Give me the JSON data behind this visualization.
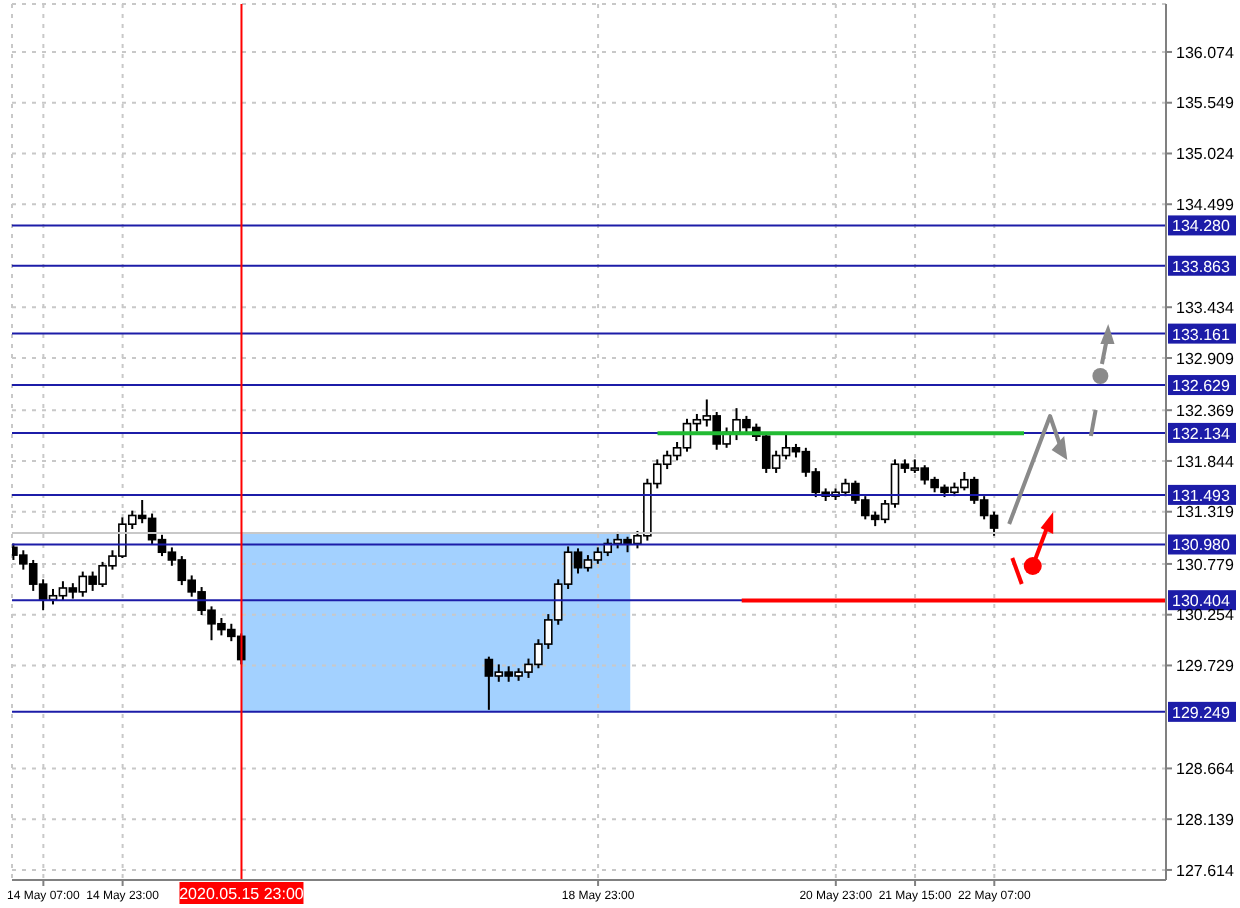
{
  "chart_data": {
    "type": "candlestick",
    "color": "#000000",
    "x": [
      "2020-05-14T01:00",
      "2020-05-14T03:00",
      "2020-05-14T05:00",
      "2020-05-14T07:00",
      "2020-05-14T09:00",
      "2020-05-14T11:00",
      "2020-05-14T13:00",
      "2020-05-14T15:00",
      "2020-05-14T17:00",
      "2020-05-14T19:00",
      "2020-05-14T21:00",
      "2020-05-14T23:00",
      "2020-05-15T01:00",
      "2020-05-15T03:00",
      "2020-05-15T05:00",
      "2020-05-15T07:00",
      "2020-05-15T09:00",
      "2020-05-15T11:00",
      "2020-05-15T13:00",
      "2020-05-15T15:00",
      "2020-05-15T17:00",
      "2020-05-15T19:00",
      "2020-05-15T21:00",
      "2020-05-15T23:00",
      "2020-05-18T01:00",
      "2020-05-18T03:00",
      "2020-05-18T05:00",
      "2020-05-18T07:00",
      "2020-05-18T09:00",
      "2020-05-18T11:00",
      "2020-05-18T13:00",
      "2020-05-18T15:00",
      "2020-05-18T17:00",
      "2020-05-18T19:00",
      "2020-05-18T21:00",
      "2020-05-18T23:00",
      "2020-05-19T01:00",
      "2020-05-19T03:00",
      "2020-05-19T05:00",
      "2020-05-19T07:00",
      "2020-05-19T09:00",
      "2020-05-19T11:00",
      "2020-05-19T13:00",
      "2020-05-19T15:00",
      "2020-05-19T17:00",
      "2020-05-19T19:00",
      "2020-05-19T21:00",
      "2020-05-19T23:00",
      "2020-05-20T01:00",
      "2020-05-20T03:00",
      "2020-05-20T05:00",
      "2020-05-20T07:00",
      "2020-05-20T09:00",
      "2020-05-20T11:00",
      "2020-05-20T13:00",
      "2020-05-20T15:00",
      "2020-05-20T17:00",
      "2020-05-20T19:00",
      "2020-05-20T21:00",
      "2020-05-20T23:00",
      "2020-05-21T01:00",
      "2020-05-21T03:00",
      "2020-05-21T05:00",
      "2020-05-21T07:00",
      "2020-05-21T09:00",
      "2020-05-21T11:00",
      "2020-05-21T13:00",
      "2020-05-21T15:00",
      "2020-05-21T17:00",
      "2020-05-21T19:00",
      "2020-05-21T21:00",
      "2020-05-21T23:00",
      "2020-05-22T01:00",
      "2020-05-22T03:00",
      "2020-05-22T05:00",
      "2020-05-22T07:00"
    ],
    "ohlc": [
      [
        130.95,
        130.99,
        130.82,
        130.87
      ],
      [
        130.87,
        130.92,
        130.72,
        130.78
      ],
      [
        130.78,
        130.82,
        130.5,
        130.57
      ],
      [
        130.57,
        130.62,
        130.3,
        130.41
      ],
      [
        130.41,
        130.52,
        130.36,
        130.45
      ],
      [
        130.45,
        130.6,
        130.4,
        130.53
      ],
      [
        130.53,
        130.58,
        130.42,
        130.49
      ],
      [
        130.49,
        130.7,
        130.44,
        130.65
      ],
      [
        130.65,
        130.7,
        130.5,
        130.57
      ],
      [
        130.57,
        130.8,
        130.54,
        130.76
      ],
      [
        130.76,
        130.92,
        130.72,
        130.86
      ],
      [
        130.86,
        131.26,
        130.84,
        131.19
      ],
      [
        131.19,
        131.33,
        131.14,
        131.28
      ],
      [
        131.28,
        131.44,
        131.2,
        131.25
      ],
      [
        131.25,
        131.3,
        130.98,
        131.03
      ],
      [
        131.03,
        131.08,
        130.86,
        130.9
      ],
      [
        130.9,
        130.95,
        130.76,
        130.82
      ],
      [
        130.82,
        130.86,
        130.56,
        130.61
      ],
      [
        130.61,
        130.66,
        130.44,
        130.49
      ],
      [
        130.49,
        130.54,
        130.25,
        130.3
      ],
      [
        130.3,
        130.34,
        129.99,
        130.16
      ],
      [
        130.16,
        130.22,
        130.04,
        130.1
      ],
      [
        130.1,
        130.16,
        129.98,
        130.03
      ],
      [
        130.03,
        130.06,
        129.74,
        129.79
      ],
      [
        129.79,
        129.82,
        129.27,
        129.62
      ],
      [
        129.62,
        129.74,
        129.56,
        129.66
      ],
      [
        129.66,
        129.72,
        129.56,
        129.62
      ],
      [
        129.62,
        129.7,
        129.57,
        129.66
      ],
      [
        129.66,
        129.8,
        129.6,
        129.74
      ],
      [
        129.74,
        130.0,
        129.7,
        129.95
      ],
      [
        129.95,
        130.26,
        129.9,
        130.2
      ],
      [
        130.2,
        130.62,
        130.15,
        130.57
      ],
      [
        130.57,
        130.96,
        130.52,
        130.9
      ],
      [
        130.9,
        130.94,
        130.68,
        130.74
      ],
      [
        130.74,
        130.87,
        130.7,
        130.82
      ],
      [
        130.82,
        130.95,
        130.78,
        130.9
      ],
      [
        130.9,
        131.04,
        130.86,
        130.99
      ],
      [
        130.99,
        131.11,
        130.94,
        131.03
      ],
      [
        131.03,
        131.06,
        130.9,
        130.99
      ],
      [
        130.99,
        131.12,
        130.94,
        131.07
      ],
      [
        131.07,
        131.66,
        131.02,
        131.61
      ],
      [
        131.61,
        131.86,
        131.56,
        131.81
      ],
      [
        131.81,
        131.95,
        131.76,
        131.9
      ],
      [
        131.9,
        132.04,
        131.85,
        131.98
      ],
      [
        131.98,
        132.28,
        131.94,
        132.23
      ],
      [
        132.23,
        132.33,
        132.15,
        132.27
      ],
      [
        132.27,
        132.48,
        132.2,
        132.31
      ],
      [
        132.31,
        132.35,
        131.96,
        132.02
      ],
      [
        132.02,
        132.19,
        131.98,
        132.14
      ],
      [
        132.14,
        132.39,
        132.06,
        132.27
      ],
      [
        132.27,
        132.31,
        132.14,
        132.19
      ],
      [
        132.19,
        132.23,
        132.05,
        132.1
      ],
      [
        132.1,
        132.14,
        131.72,
        131.77
      ],
      [
        131.77,
        131.95,
        131.72,
        131.9
      ],
      [
        131.9,
        132.12,
        131.86,
        131.98
      ],
      [
        131.98,
        132.02,
        131.88,
        131.94
      ],
      [
        131.94,
        131.98,
        131.68,
        131.73
      ],
      [
        131.73,
        131.77,
        131.47,
        131.52
      ],
      [
        131.52,
        131.56,
        131.43,
        131.48
      ],
      [
        131.48,
        131.56,
        131.44,
        131.52
      ],
      [
        131.52,
        131.66,
        131.48,
        131.61
      ],
      [
        131.61,
        131.64,
        131.4,
        131.44
      ],
      [
        131.44,
        131.48,
        131.24,
        131.28
      ],
      [
        131.28,
        131.32,
        131.17,
        131.24
      ],
      [
        131.24,
        131.44,
        131.2,
        131.4
      ],
      [
        131.4,
        131.86,
        131.36,
        131.81
      ],
      [
        131.81,
        131.86,
        131.72,
        131.77
      ],
      [
        131.77,
        131.86,
        131.72,
        131.77
      ],
      [
        131.77,
        131.8,
        131.6,
        131.65
      ],
      [
        131.65,
        131.68,
        131.52,
        131.57
      ],
      [
        131.57,
        131.6,
        131.47,
        131.52
      ],
      [
        131.52,
        131.62,
        131.48,
        131.57
      ],
      [
        131.57,
        131.73,
        131.54,
        131.65
      ],
      [
        131.65,
        131.68,
        131.4,
        131.44
      ],
      [
        131.44,
        131.48,
        131.24,
        131.28
      ],
      [
        131.28,
        131.32,
        131.07,
        131.15
      ]
    ],
    "series": [
      {
        "type": "line",
        "color": "#22bb33",
        "x": [
          "2020-05-19T11:00",
          "2020-05-22T13:00"
        ],
        "values": [
          132.13,
          132.13
        ]
      },
      {
        "type": "line",
        "color": "#ff0000",
        "x": [
          "2020-05-20T04:00",
          "2020-05-23T17:40"
        ],
        "values": [
          130.4,
          130.4
        ]
      }
    ],
    "xlim": [
      "2020-05-14T00:40",
      "2020-05-23T17:40"
    ],
    "xticks": [
      {
        "value": "2020-05-14T07:00",
        "label": "14 May 07:00"
      },
      {
        "value": "2020-05-14T23:00",
        "label": "14 May 23:00"
      },
      {
        "value": "2020-05-18T23:00",
        "label": "18 May 23:00"
      },
      {
        "value": "2020-05-20T23:00",
        "label": "20 May 23:00"
      },
      {
        "value": "2020-05-21T15:00",
        "label": "21 May 15:00"
      },
      {
        "value": "2020-05-22T07:00",
        "label": "22 May 07:00"
      }
    ],
    "ylim": [
      127.51,
      136.57
    ],
    "yticks": [
      127.614,
      128.139,
      128.664,
      129.729,
      130.254,
      130.779,
      131.319,
      131.844,
      132.369,
      132.909,
      133.434,
      134.499,
      135.024,
      135.549,
      136.074
    ],
    "grid": true,
    "ref_lines": [
      {
        "axis": "y",
        "value": 134.28,
        "label": "134.280",
        "color": "#1c1ca8"
      },
      {
        "axis": "y",
        "value": 133.863,
        "label": "133.863",
        "color": "#1c1ca8"
      },
      {
        "axis": "y",
        "value": 133.161,
        "label": "133.161",
        "color": "#1c1ca8"
      },
      {
        "axis": "y",
        "value": 132.629,
        "label": "132.629",
        "color": "#1c1ca8"
      },
      {
        "axis": "y",
        "value": 132.134,
        "label": "132.134",
        "color": "#1c1ca8"
      },
      {
        "axis": "y",
        "value": 131.493,
        "label": "131.493",
        "color": "#1c1ca8"
      },
      {
        "axis": "y",
        "value": 131.1,
        "color": "#c8c8c8"
      },
      {
        "axis": "y",
        "value": 130.98,
        "label": "130.980",
        "color": "#1c1ca8"
      },
      {
        "axis": "y",
        "value": 130.404,
        "label": "130.404",
        "color": "#1c1ca8"
      },
      {
        "axis": "y",
        "value": 129.249,
        "label": "129.249",
        "color": "#1c1ca8"
      },
      {
        "axis": "x",
        "value": "2020-05-15T23:00",
        "label": "2020.05.15 23:00",
        "color": "#ff0000"
      }
    ]
  }
}
